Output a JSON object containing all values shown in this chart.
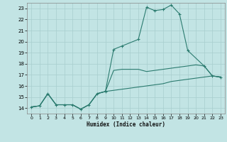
{
  "xlabel": "Humidex (Indice chaleur)",
  "xlim": [
    -0.5,
    23.5
  ],
  "ylim": [
    13.5,
    23.5
  ],
  "xticks": [
    0,
    1,
    2,
    3,
    4,
    5,
    6,
    7,
    8,
    9,
    10,
    11,
    12,
    13,
    14,
    15,
    16,
    17,
    18,
    19,
    20,
    21,
    22,
    23
  ],
  "yticks": [
    14,
    15,
    16,
    17,
    18,
    19,
    20,
    21,
    22,
    23
  ],
  "bg_color": "#c2e4e4",
  "line_color": "#2b7b6f",
  "grid_color": "#a8cece",
  "main_line_x": [
    0,
    1,
    2,
    3,
    4,
    5,
    6,
    7,
    8,
    9,
    10,
    11,
    13,
    14,
    15,
    16,
    17,
    18,
    19,
    21,
    22,
    23
  ],
  "main_line_y": [
    14.1,
    14.2,
    15.3,
    14.3,
    14.3,
    14.3,
    13.9,
    14.3,
    15.3,
    15.5,
    19.3,
    19.6,
    20.2,
    23.1,
    22.8,
    22.9,
    23.3,
    22.5,
    19.2,
    17.8,
    16.9,
    16.8
  ],
  "line2_x": [
    0,
    1,
    2,
    3,
    4,
    5,
    6,
    7,
    8,
    9,
    10,
    11,
    13,
    14,
    15,
    16,
    17,
    18,
    19,
    20,
    21,
    22,
    23
  ],
  "line2_y": [
    14.1,
    14.2,
    15.3,
    14.3,
    14.3,
    14.3,
    13.9,
    14.3,
    15.3,
    15.5,
    17.4,
    17.5,
    17.5,
    17.3,
    17.4,
    17.5,
    17.6,
    17.7,
    17.8,
    17.9,
    17.8,
    16.9,
    16.8
  ],
  "line3_x": [
    0,
    1,
    2,
    3,
    4,
    5,
    6,
    7,
    8,
    9,
    10,
    11,
    13,
    14,
    15,
    16,
    17,
    18,
    19,
    20,
    21,
    22,
    23
  ],
  "line3_y": [
    14.1,
    14.2,
    15.3,
    14.3,
    14.3,
    14.3,
    13.9,
    14.3,
    15.3,
    15.5,
    15.6,
    15.7,
    15.9,
    16.0,
    16.1,
    16.2,
    16.4,
    16.5,
    16.6,
    16.7,
    16.8,
    16.9,
    16.8
  ],
  "figsize": [
    3.2,
    2.0
  ],
  "dpi": 100
}
